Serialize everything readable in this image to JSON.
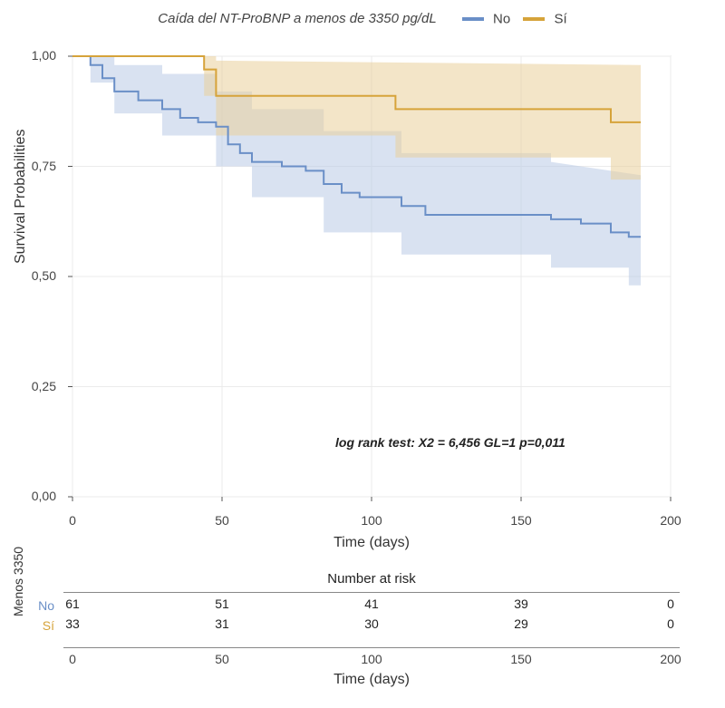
{
  "legend": {
    "title": "Caída del NT-ProBNP a  menos de 3350 pg/dL",
    "items": [
      {
        "label": "No",
        "color": "#6a8fc7"
      },
      {
        "label": "Sí",
        "color": "#d6a33a"
      }
    ]
  },
  "km": {
    "type": "kaplan-meier",
    "xlim": [
      0,
      200
    ],
    "ylim": [
      0,
      1
    ],
    "xticks": [
      0,
      50,
      100,
      150,
      200
    ],
    "yticks": [
      0,
      0.25,
      0.5,
      0.75,
      1
    ],
    "ytick_labels": [
      "0,00",
      "0,25",
      "0,50",
      "0,75",
      "1,00"
    ],
    "xlabel": "Time (days)",
    "ylabel": "Survival Probabilities",
    "background_color": "#ffffff",
    "grid_color": "#ebebeb",
    "panel_border_color": "#cccccc",
    "line_width": 2,
    "label_fontsize": 16,
    "tick_fontsize": 14,
    "annotation": "log rank test: X2 = 6,456  GL=1   p=0,011",
    "series": [
      {
        "name": "No",
        "color": "#6a8fc7",
        "ci_fill": "#b9cbe6",
        "ci_opacity": 0.55,
        "step": [
          [
            0,
            1.0
          ],
          [
            6,
            1.0
          ],
          [
            6,
            0.98
          ],
          [
            10,
            0.98
          ],
          [
            10,
            0.95
          ],
          [
            14,
            0.95
          ],
          [
            14,
            0.92
          ],
          [
            22,
            0.92
          ],
          [
            22,
            0.9
          ],
          [
            30,
            0.9
          ],
          [
            30,
            0.88
          ],
          [
            36,
            0.88
          ],
          [
            36,
            0.86
          ],
          [
            42,
            0.86
          ],
          [
            42,
            0.85
          ],
          [
            48,
            0.85
          ],
          [
            48,
            0.84
          ],
          [
            52,
            0.84
          ],
          [
            52,
            0.8
          ],
          [
            56,
            0.8
          ],
          [
            56,
            0.78
          ],
          [
            60,
            0.78
          ],
          [
            60,
            0.76
          ],
          [
            70,
            0.76
          ],
          [
            70,
            0.75
          ],
          [
            78,
            0.75
          ],
          [
            78,
            0.74
          ],
          [
            84,
            0.74
          ],
          [
            84,
            0.71
          ],
          [
            90,
            0.71
          ],
          [
            90,
            0.69
          ],
          [
            96,
            0.69
          ],
          [
            96,
            0.68
          ],
          [
            110,
            0.68
          ],
          [
            110,
            0.66
          ],
          [
            118,
            0.66
          ],
          [
            118,
            0.64
          ],
          [
            140,
            0.64
          ],
          [
            160,
            0.64
          ],
          [
            160,
            0.63
          ],
          [
            170,
            0.63
          ],
          [
            170,
            0.62
          ],
          [
            180,
            0.62
          ],
          [
            180,
            0.6
          ],
          [
            186,
            0.6
          ],
          [
            186,
            0.59
          ],
          [
            190,
            0.59
          ]
        ],
        "ci_upper": [
          [
            0,
            1.0
          ],
          [
            14,
            1.0
          ],
          [
            14,
            0.98
          ],
          [
            30,
            0.98
          ],
          [
            30,
            0.96
          ],
          [
            48,
            0.96
          ],
          [
            48,
            0.92
          ],
          [
            60,
            0.92
          ],
          [
            60,
            0.88
          ],
          [
            84,
            0.88
          ],
          [
            84,
            0.83
          ],
          [
            110,
            0.83
          ],
          [
            110,
            0.78
          ],
          [
            160,
            0.78
          ],
          [
            160,
            0.76
          ],
          [
            190,
            0.73
          ]
        ],
        "ci_lower": [
          [
            0,
            1.0
          ],
          [
            6,
            1.0
          ],
          [
            6,
            0.94
          ],
          [
            14,
            0.94
          ],
          [
            14,
            0.87
          ],
          [
            30,
            0.87
          ],
          [
            30,
            0.82
          ],
          [
            48,
            0.82
          ],
          [
            48,
            0.75
          ],
          [
            60,
            0.75
          ],
          [
            60,
            0.68
          ],
          [
            84,
            0.68
          ],
          [
            84,
            0.6
          ],
          [
            110,
            0.6
          ],
          [
            110,
            0.55
          ],
          [
            160,
            0.55
          ],
          [
            160,
            0.52
          ],
          [
            186,
            0.52
          ],
          [
            186,
            0.48
          ],
          [
            190,
            0.48
          ]
        ]
      },
      {
        "name": "Sí",
        "color": "#d6a33a",
        "ci_fill": "#e9cf9a",
        "ci_opacity": 0.55,
        "step": [
          [
            0,
            1.0
          ],
          [
            44,
            1.0
          ],
          [
            44,
            0.97
          ],
          [
            48,
            0.97
          ],
          [
            48,
            0.91
          ],
          [
            108,
            0.91
          ],
          [
            108,
            0.88
          ],
          [
            180,
            0.88
          ],
          [
            180,
            0.85
          ],
          [
            190,
            0.85
          ]
        ],
        "ci_upper": [
          [
            0,
            1.0
          ],
          [
            48,
            1.0
          ],
          [
            48,
            0.99
          ],
          [
            190,
            0.98
          ]
        ],
        "ci_lower": [
          [
            0,
            1.0
          ],
          [
            44,
            1.0
          ],
          [
            44,
            0.91
          ],
          [
            48,
            0.91
          ],
          [
            48,
            0.82
          ],
          [
            108,
            0.82
          ],
          [
            108,
            0.77
          ],
          [
            180,
            0.77
          ],
          [
            180,
            0.72
          ],
          [
            190,
            0.72
          ]
        ]
      }
    ]
  },
  "risk_table": {
    "title": "Number at risk",
    "ylabel": "Menos  3350",
    "xticks": [
      0,
      50,
      100,
      150,
      200
    ],
    "xlabel": "Time (days)",
    "rows": [
      {
        "label": "No",
        "color": "#6a8fc7",
        "counts": [
          61,
          51,
          41,
          39,
          0
        ]
      },
      {
        "label": "Sí",
        "color": "#d6a33a",
        "counts": [
          33,
          31,
          30,
          29,
          0
        ]
      }
    ]
  }
}
